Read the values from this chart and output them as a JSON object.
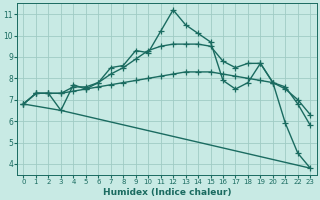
{
  "xlabel": "Humidex (Indice chaleur)",
  "xlim": [
    -0.5,
    23.5
  ],
  "ylim": [
    3.5,
    11.5
  ],
  "xticks": [
    0,
    1,
    2,
    3,
    4,
    5,
    6,
    7,
    8,
    9,
    10,
    11,
    12,
    13,
    14,
    15,
    16,
    17,
    18,
    19,
    20,
    21,
    22,
    23
  ],
  "yticks": [
    4,
    5,
    6,
    7,
    8,
    9,
    10,
    11
  ],
  "bg_color": "#c8eae4",
  "grid_color": "#a0ccc4",
  "line_color": "#1a6b60",
  "line_width": 1.0,
  "marker": "+",
  "marker_size": 4,
  "curves": [
    {
      "x": [
        0,
        1,
        2,
        3,
        4,
        5,
        6,
        7,
        8,
        9,
        10,
        11,
        12,
        13,
        14,
        15,
        16,
        17,
        18,
        19,
        20,
        21,
        22,
        23
      ],
      "y": [
        6.8,
        7.3,
        7.3,
        6.5,
        7.7,
        7.5,
        7.8,
        8.5,
        8.6,
        9.3,
        9.2,
        10.2,
        11.2,
        10.5,
        10.1,
        9.7,
        7.9,
        7.5,
        7.8,
        8.7,
        7.8,
        5.9,
        4.5,
        3.8
      ]
    },
    {
      "x": [
        0,
        1,
        2,
        3,
        4,
        5,
        6,
        7,
        8,
        9,
        10,
        11,
        12,
        13,
        14,
        15,
        16,
        17,
        18,
        19,
        20,
        21,
        22,
        23
      ],
      "y": [
        6.8,
        7.3,
        7.3,
        7.3,
        7.6,
        7.6,
        7.8,
        8.2,
        8.5,
        8.9,
        9.3,
        9.5,
        9.6,
        9.6,
        9.6,
        9.5,
        8.8,
        8.5,
        8.7,
        8.7,
        7.8,
        7.6,
        6.8,
        5.8
      ]
    },
    {
      "x": [
        0,
        1,
        2,
        3,
        4,
        5,
        6,
        7,
        8,
        9,
        10,
        11,
        12,
        13,
        14,
        15,
        16,
        17,
        18,
        19,
        20,
        21,
        22,
        23
      ],
      "y": [
        6.8,
        7.3,
        7.3,
        7.3,
        7.4,
        7.5,
        7.6,
        7.7,
        7.8,
        7.9,
        8.0,
        8.1,
        8.2,
        8.3,
        8.3,
        8.3,
        8.2,
        8.1,
        8.0,
        7.9,
        7.8,
        7.5,
        7.0,
        6.3
      ]
    },
    {
      "x": [
        0,
        3,
        23
      ],
      "y": [
        6.8,
        6.5,
        3.8
      ],
      "no_marker": true
    }
  ]
}
